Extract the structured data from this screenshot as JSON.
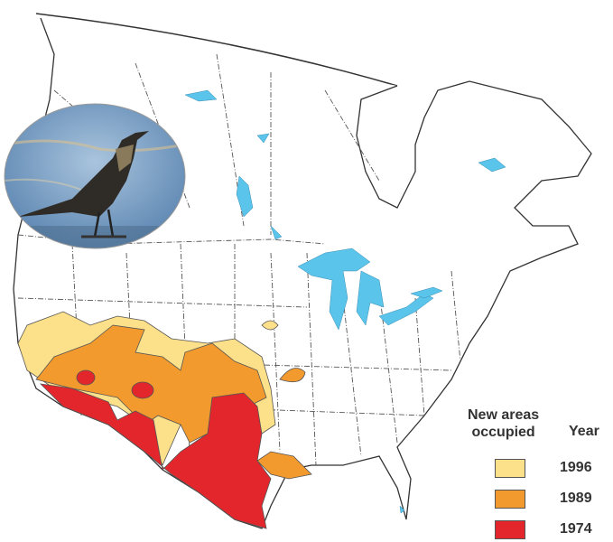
{
  "legend": {
    "title": "New areas occupied",
    "title_line1": "New areas",
    "title_line2": "occupied",
    "year_header": "Year",
    "items": [
      {
        "year": "1996",
        "color": "#FCE08A"
      },
      {
        "year": "1989",
        "color": "#F39A2E"
      },
      {
        "year": "1974",
        "color": "#E3262C"
      }
    ]
  },
  "colors": {
    "water": "#5BC4EA",
    "border": "#444444"
  },
  "inset_photo": "grackle-bird-photo"
}
